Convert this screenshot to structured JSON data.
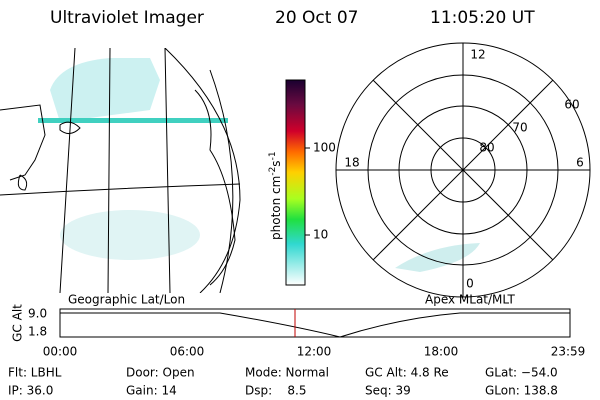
{
  "header": {
    "title": "Ultraviolet Imager",
    "date": "20 Oct 07",
    "time": "11:05:20 UT"
  },
  "colorbar": {
    "unit": "photon cm",
    "exp1": "-2",
    "unit2": "s",
    "exp2": "-1",
    "labels": [
      "100",
      "10"
    ]
  },
  "polar": {
    "mlt_labels": [
      "12",
      "18",
      "6",
      "0"
    ],
    "lat_labels": [
      "60",
      "70",
      "80"
    ]
  },
  "panels": {
    "left_label": "Geographic Lat/Lon",
    "right_label": "Apex MLat/MLT"
  },
  "timeline": {
    "axis_label": "GC Alt",
    "top": "9.0",
    "bottom": "1.8",
    "times": [
      "00:00",
      "06:00",
      "12:00",
      "18:00",
      "23:59"
    ]
  },
  "status": {
    "rows": [
      [
        "Flt: LBHL",
        "Door: Open",
        "Mode: Normal",
        "GC Alt: 4.8 Re",
        "GLat: −54.0"
      ],
      [
        "IP: 36.0",
        "Gain: 14",
        "Dsp:    8.5",
        "Seq: 39",
        "GLon: 138.8"
      ]
    ]
  }
}
